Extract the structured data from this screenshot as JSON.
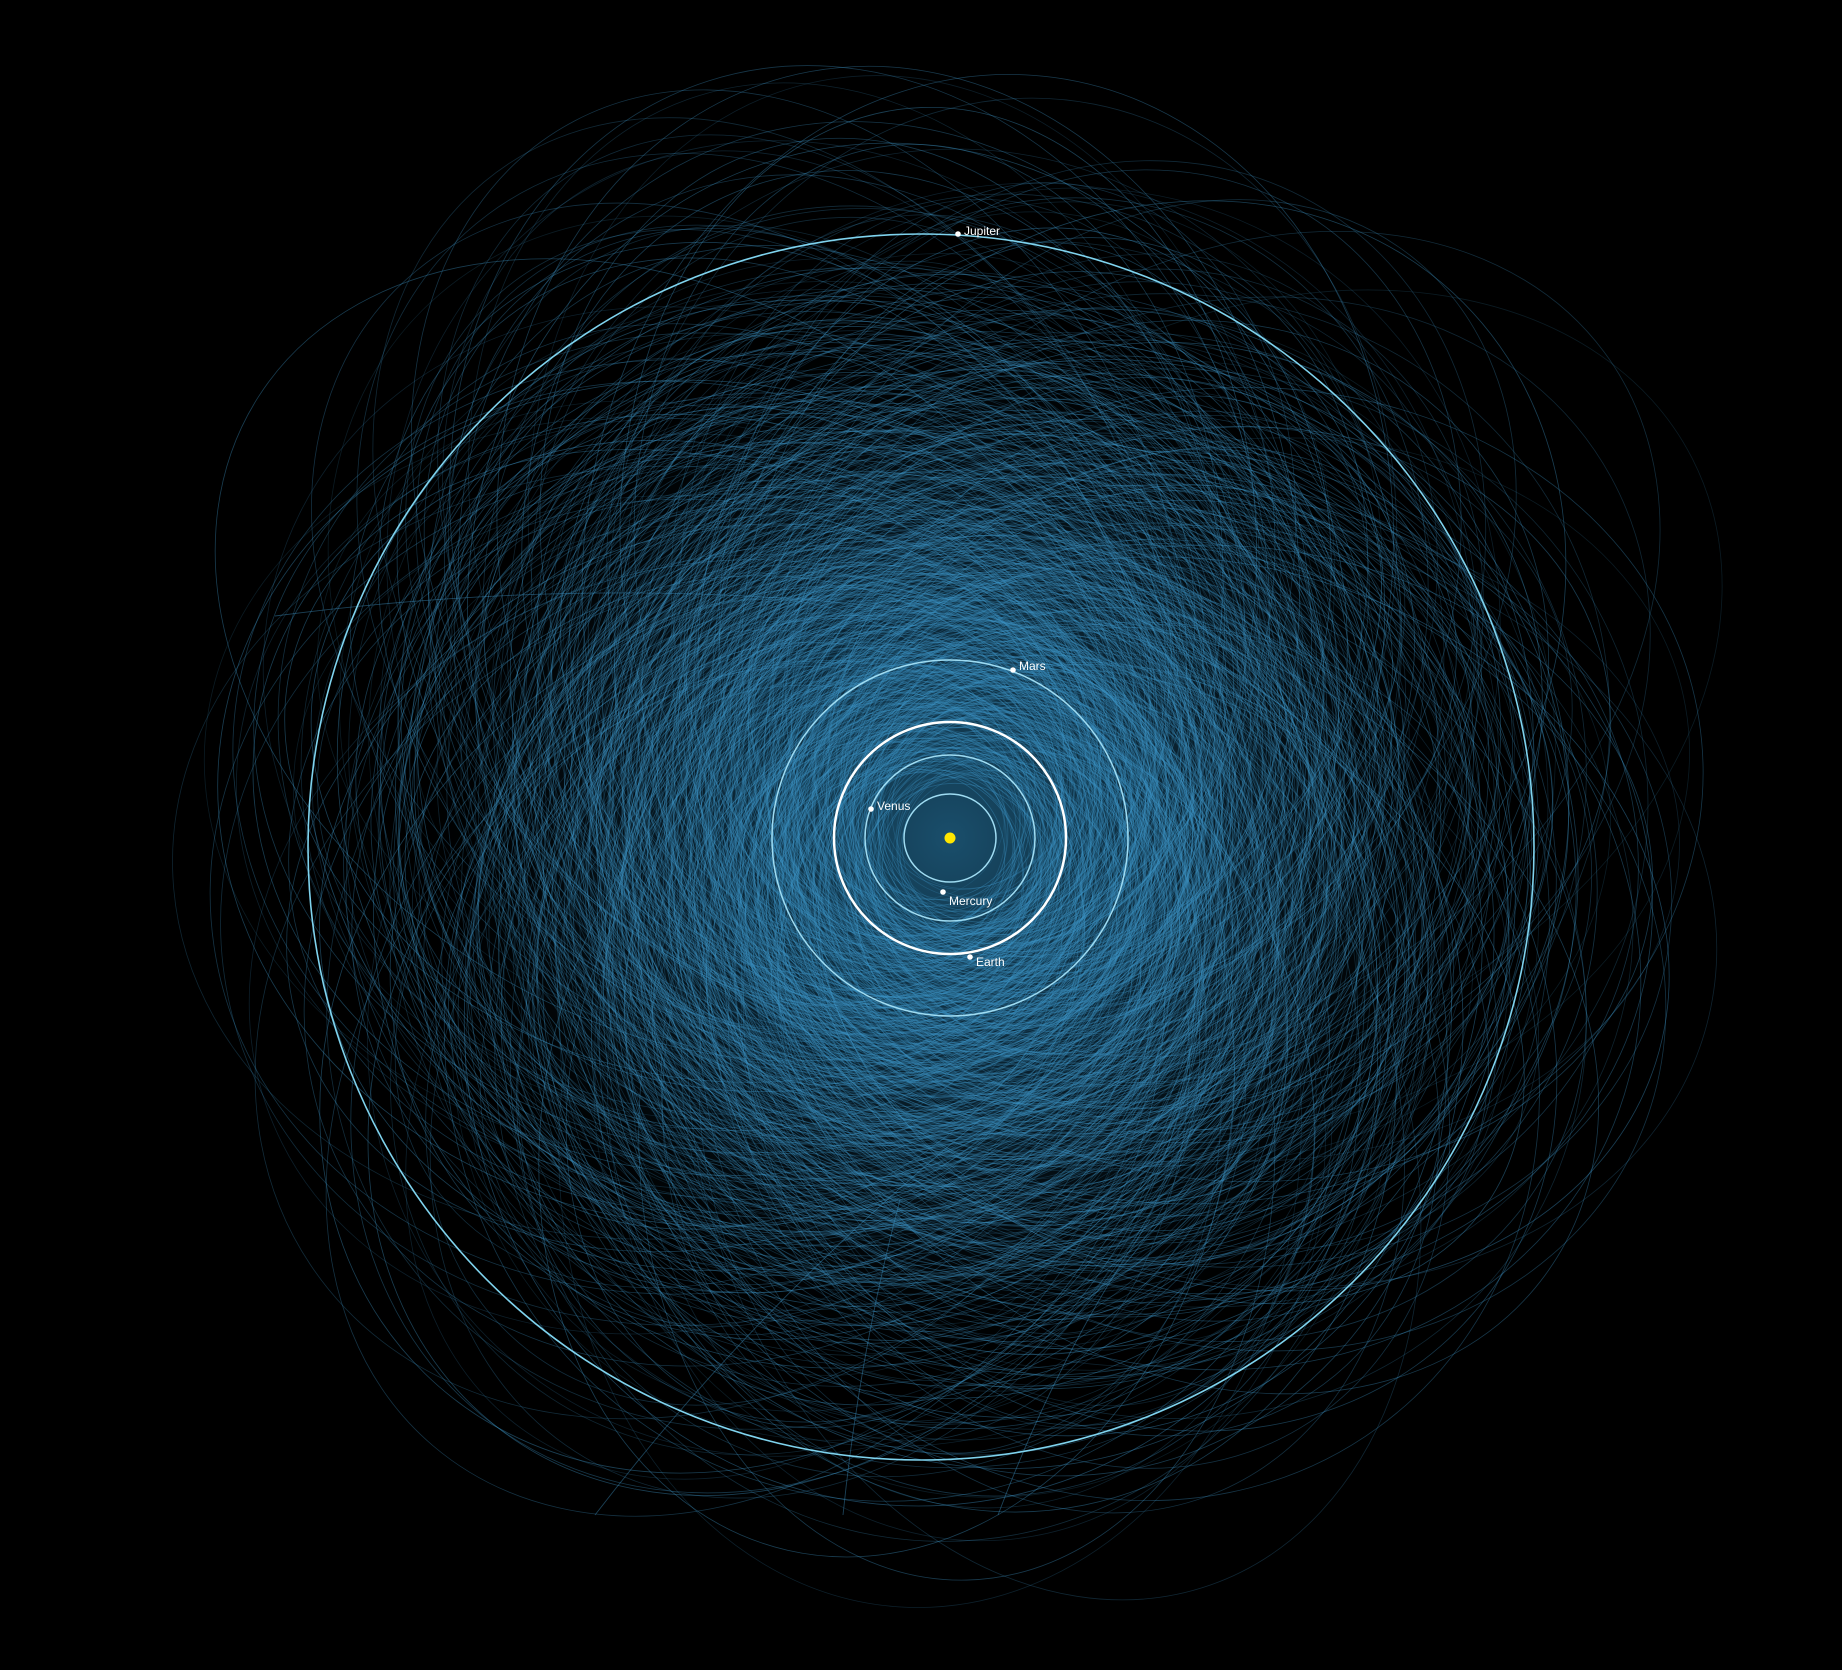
{
  "colors": {
    "background": "#000000",
    "asteroid_orbit": "#3d93c4",
    "inner_orbit": "#9fdcf2",
    "earth_orbit": "#ffffff",
    "jupiter_orbit": "#7fd3ee",
    "sun": "#ffe600",
    "planet_marker": "#ffffff"
  },
  "sun": {
    "name": "Sun",
    "icon": "sun-icon"
  },
  "planets": [
    {
      "name": "Mercury",
      "label": "Mercury"
    },
    {
      "name": "Venus",
      "label": "Venus"
    },
    {
      "name": "Earth",
      "label": "Earth"
    },
    {
      "name": "Mars",
      "label": "Mars"
    },
    {
      "name": "Jupiter",
      "label": "Jupiter"
    }
  ]
}
